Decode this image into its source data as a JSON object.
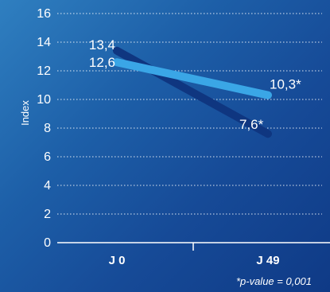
{
  "chart_data": {
    "type": "line",
    "categories": [
      "J 0",
      "J 49"
    ],
    "series": [
      {
        "values": [
          13.4,
          7.6
        ],
        "color": "#0f3680",
        "labels": [
          "13,4",
          "7,6*"
        ]
      },
      {
        "values": [
          12.6,
          10.3
        ],
        "color": "#3aa6e6",
        "labels": [
          "12,6",
          "10,3*"
        ]
      }
    ],
    "ylabel": "Index",
    "ylim": [
      0,
      16
    ],
    "yticks": [
      0,
      2,
      4,
      6,
      8,
      10,
      12,
      14,
      16
    ],
    "grid": true,
    "footnote": "*p-value = 0,001"
  }
}
